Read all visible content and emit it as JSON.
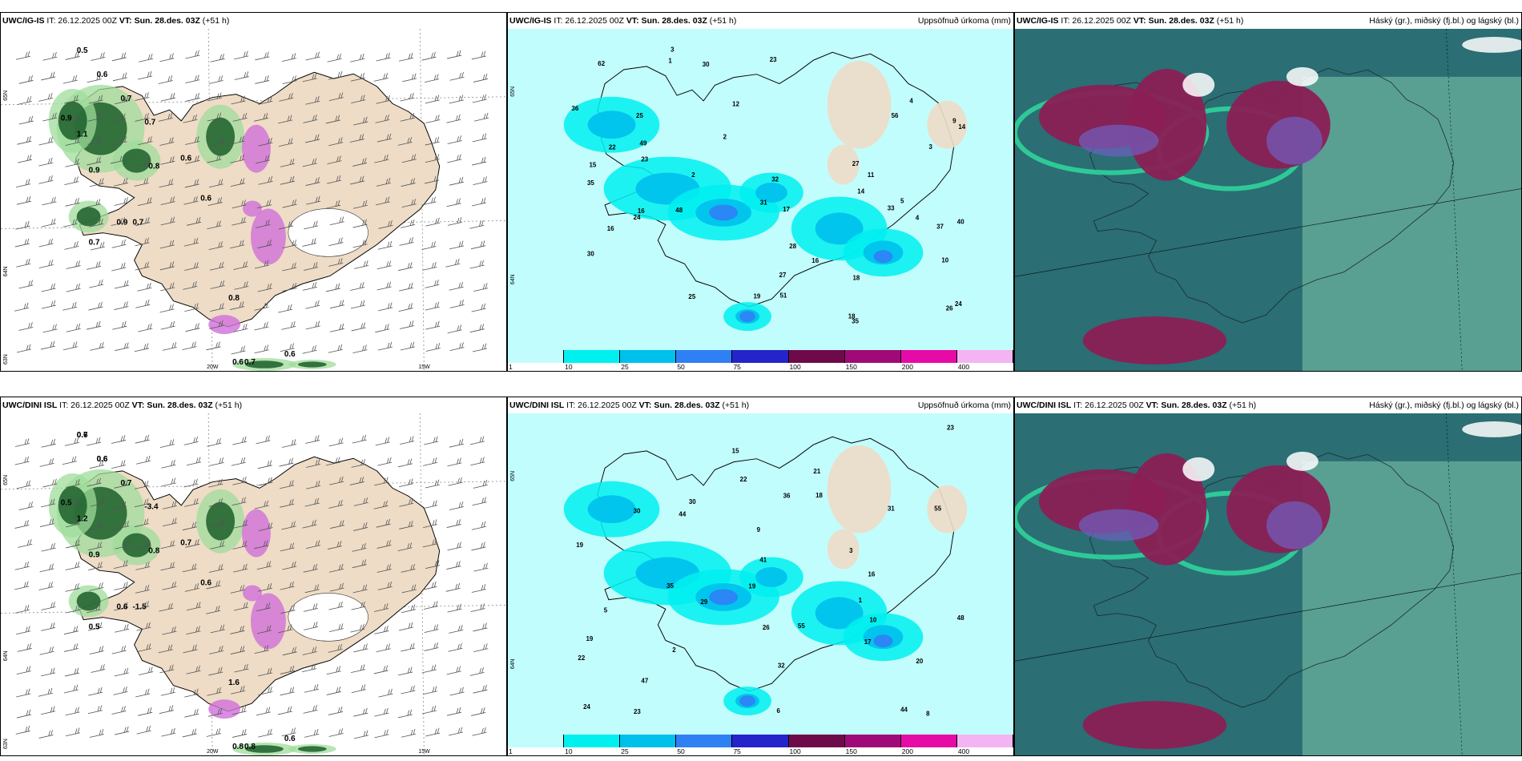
{
  "panels": [
    {
      "model": "UWC/IG-IS",
      "it": " IT: 26.12.2025 00Z ",
      "vt_label": "VT:",
      "vt_value": " Sun. 28.des. 03Z ",
      "lead": "(+51 h)",
      "right_title": "",
      "lat_labels": [
        "65N",
        "64N",
        "63N"
      ],
      "lon_labels": [
        "20W",
        "15W"
      ],
      "values": [
        "0.5",
        "0.6",
        "0.7",
        "0.9",
        "1.1",
        "0.7",
        "0.9",
        "0.8",
        "0.6",
        "0.6",
        "0.7",
        "0.9",
        "0.7",
        "0.8",
        "0.6",
        "0.7",
        "0.6"
      ]
    },
    {
      "model": "UWC/IG-IS",
      "it": " IT: 26.12.2025 00Z ",
      "vt_label": "VT:",
      "vt_value": " Sun. 28.des. 03Z ",
      "lead": "(+51 h)",
      "right_title": "Uppsöfnuð úrkoma (mm)",
      "lat_labels": [
        "65N",
        "64N"
      ],
      "values": [
        "10",
        "4",
        "4",
        "3",
        "12",
        "18",
        "14",
        "16",
        "17",
        "19",
        "23",
        "27",
        "11",
        "35",
        "27",
        "22",
        "16",
        "30",
        "26",
        "15",
        "31",
        "32",
        "37",
        "48",
        "49",
        "40",
        "35",
        "25",
        "28",
        "24",
        "23",
        "36",
        "9",
        "25",
        "14",
        "18",
        "16",
        "24",
        "33",
        "56",
        "30",
        "51",
        "62",
        "2",
        "1",
        "5",
        "3",
        "2"
      ]
    },
    {
      "model": "UWC/IG-IS",
      "it": " IT: 26.12.2025 00Z ",
      "vt_label": "VT:",
      "vt_value": " Sun. 28.des. 03Z ",
      "lead": "(+51 h)",
      "right_title": "Háský (gr.), miðský (fj.bl.) og lágský (bl.)"
    },
    {
      "model": "UWC/DINI ISL",
      "it": " IT: 26.12.2025 00Z ",
      "vt_label": "VT:",
      "vt_value": " Sun. 28.des. 03Z ",
      "lead": "(+51 h)",
      "right_title": "",
      "lat_labels": [
        "65N",
        "64N",
        "63N"
      ],
      "lon_labels": [
        "20W",
        "15W"
      ],
      "values": [
        "0.6",
        "0.6",
        "0.7",
        "0.5",
        "1.2",
        "-3.4",
        "0.9",
        "0.8",
        "0.7",
        "0.6",
        "-1.5",
        "0.6",
        "0.5",
        "1.6",
        "0.6",
        "0.8",
        "0.8",
        "0.7",
        "0.6"
      ]
    },
    {
      "model": "UWC/DINI ISL",
      "it": " IT: 26.12.2025 00Z ",
      "vt_label": "VT:",
      "vt_value": " Sun. 28.des. 03Z ",
      "lead": "(+51 h)",
      "right_title": "Uppsöfnuð úrkoma (mm)",
      "lat_labels": [
        "65N",
        "64N"
      ],
      "values": [
        "9",
        "8",
        "10",
        "6",
        "16",
        "19",
        "29",
        "41",
        "44",
        "35",
        "22",
        "30",
        "21",
        "23",
        "20",
        "17",
        "30",
        "47",
        "48",
        "55",
        "32",
        "18",
        "19",
        "23",
        "22",
        "24",
        "26",
        "55",
        "44",
        "31",
        "36",
        "19",
        "15",
        "2",
        "1",
        "3",
        "5"
      ]
    },
    {
      "model": "UWC/DINI ISL",
      "it": " IT: 26.12.2025 00Z ",
      "vt_label": "VT:",
      "vt_value": " Sun. 28.des. 03Z ",
      "lead": "(+51 h)",
      "right_title": "Háský (gr.), miðský (fj.bl.) og lágský (bl.)"
    }
  ],
  "colorbar": {
    "labels": [
      "1",
      "10",
      "25",
      "50",
      "75",
      "100",
      "150",
      "200",
      "400"
    ],
    "colors": [
      "#c2fdfd",
      "#00f0f0",
      "#00c0ec",
      "#2f7ff5",
      "#2424c8",
      "#6e0a4a",
      "#a00a78",
      "#e60aa6",
      "#f3b4f3"
    ]
  },
  "colors": {
    "land": "#eedcc6",
    "sea_wind": "#ffffff",
    "precip_sea": "#c2fdfd",
    "cloud_base": "#2b6e74",
    "cloud_low": "#5ea596",
    "high_cloud": "#8a1f55",
    "mid_cloud": "#6f5fc0",
    "green_dark": "#1c5e2a",
    "green_light": "#9fdc9b",
    "snow_pink": "#d070d8"
  }
}
